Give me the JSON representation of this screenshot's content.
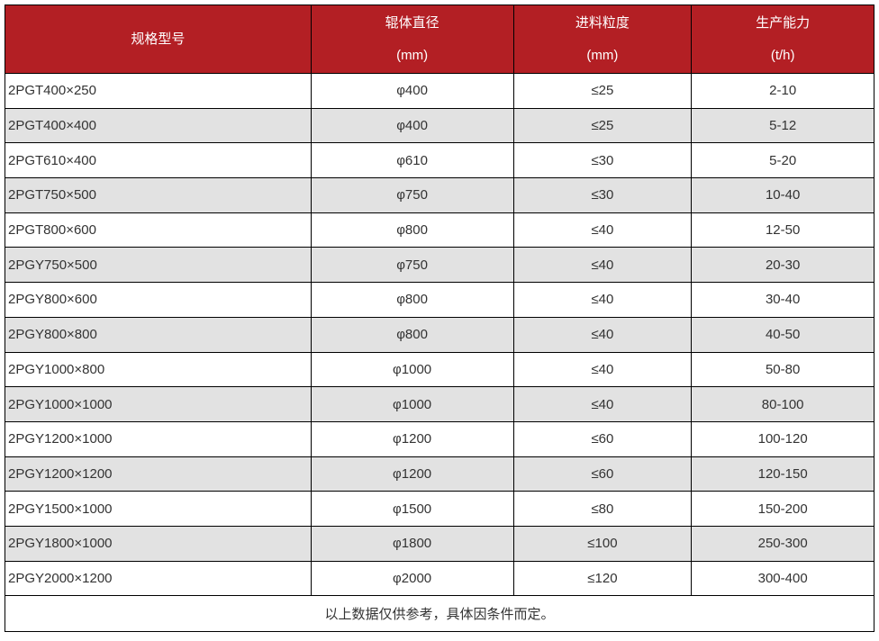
{
  "table": {
    "columns": [
      {
        "title": "规格型号",
        "unit": ""
      },
      {
        "title": "辊体直径",
        "unit": "(mm)"
      },
      {
        "title": "进料粒度",
        "unit": "(mm)"
      },
      {
        "title": "生产能力",
        "unit": "(t/h)"
      }
    ],
    "rows": [
      {
        "model": "2PGT400×250",
        "diameter": "φ400",
        "feed": "≤25",
        "capacity": "2-10"
      },
      {
        "model": "2PGT400×400",
        "diameter": "φ400",
        "feed": "≤25",
        "capacity": "5-12"
      },
      {
        "model": "2PGT610×400",
        "diameter": "φ610",
        "feed": "≤30",
        "capacity": "5-20"
      },
      {
        "model": "2PGT750×500",
        "diameter": "φ750",
        "feed": "≤30",
        "capacity": "10-40"
      },
      {
        "model": "2PGT800×600",
        "diameter": "φ800",
        "feed": "≤40",
        "capacity": "12-50"
      },
      {
        "model": "2PGY750×500",
        "diameter": "φ750",
        "feed": "≤40",
        "capacity": "20-30"
      },
      {
        "model": "2PGY800×600",
        "diameter": "φ800",
        "feed": "≤40",
        "capacity": "30-40"
      },
      {
        "model": "2PGY800×800",
        "diameter": "φ800",
        "feed": "≤40",
        "capacity": "40-50"
      },
      {
        "model": "2PGY1000×800",
        "diameter": "φ1000",
        "feed": "≤40",
        "capacity": "50-80"
      },
      {
        "model": "2PGY1000×1000",
        "diameter": "φ1000",
        "feed": "≤40",
        "capacity": "80-100"
      },
      {
        "model": "2PGY1200×1000",
        "diameter": "φ1200",
        "feed": "≤60",
        "capacity": "100-120"
      },
      {
        "model": "2PGY1200×1200",
        "diameter": "φ1200",
        "feed": "≤60",
        "capacity": "120-150"
      },
      {
        "model": "2PGY1500×1000",
        "diameter": "φ1500",
        "feed": "≤80",
        "capacity": "150-200"
      },
      {
        "model": "2PGY1800×1000",
        "diameter": "φ1800",
        "feed": "≤100",
        "capacity": "250-300"
      },
      {
        "model": "2PGY2000×1200",
        "diameter": "φ2000",
        "feed": "≤120",
        "capacity": "300-400"
      }
    ],
    "footer_note": "以上数据仅供参考，具体因条件而定。"
  },
  "colors": {
    "header_bg": "#b31f24",
    "header_text": "#ffffff",
    "row_alt_bg": "#e2e2e2",
    "border": "#000000",
    "body_text": "#333333"
  }
}
